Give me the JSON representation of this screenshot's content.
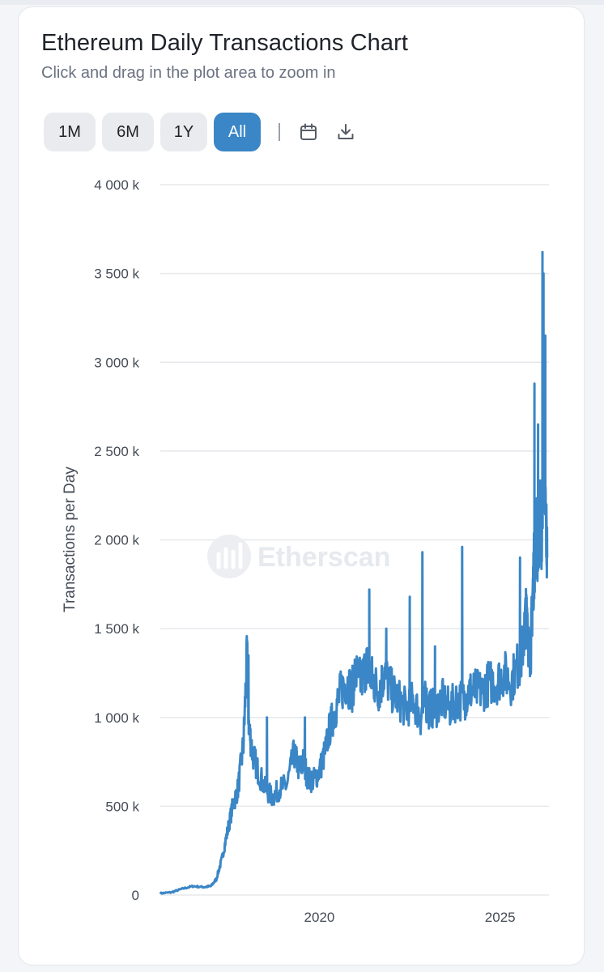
{
  "header": {
    "title": "Ethereum Daily Transactions Chart",
    "subtitle": "Click and drag in the plot area to zoom in"
  },
  "toolbar": {
    "ranges": [
      "1M",
      "6M",
      "1Y",
      "All"
    ],
    "active_range": "All",
    "separator": "|",
    "icons": [
      "calendar-icon",
      "download-icon"
    ]
  },
  "watermark": {
    "text": "Etherscan"
  },
  "colors": {
    "line": "#3a86c6",
    "active_button": "#3a86c6",
    "button": "#e9ebee",
    "grid": "#e6e8eb"
  },
  "chart_data": {
    "type": "line",
    "title": "Ethereum Daily Transactions Chart",
    "xlabel": "",
    "ylabel": "Transactions per Day",
    "x_tick_labels": [
      "2020",
      "2025"
    ],
    "x_ticks": [
      2020.0,
      2025.0
    ],
    "xlim": [
      2015.6,
      2026.35
    ],
    "y_tick_labels": [
      "0",
      "500 k",
      "1 000 k",
      "1 500 k",
      "2 000 k",
      "2 500 k",
      "3 000 k",
      "3 500 k",
      "4 000 k"
    ],
    "y_ticks": [
      0,
      500000,
      1000000,
      1500000,
      2000000,
      2500000,
      3000000,
      3500000,
      4000000
    ],
    "ylim": [
      0,
      4000000
    ],
    "grid": true,
    "series": [
      {
        "name": "",
        "x": [
          2015.6,
          2015.9,
          2016.2,
          2016.5,
          2016.8,
          2017.0,
          2017.15,
          2017.3,
          2017.45,
          2017.6,
          2017.75,
          2017.9,
          2018.0,
          2018.05,
          2018.15,
          2018.3,
          2018.5,
          2018.7,
          2018.9,
          2019.1,
          2019.3,
          2019.45,
          2019.55,
          2019.7,
          2019.85,
          2020.0,
          2020.15,
          2020.3,
          2020.45,
          2020.6,
          2020.75,
          2020.9,
          2021.0,
          2021.15,
          2021.3,
          2021.4,
          2021.5,
          2021.65,
          2021.8,
          2022.0,
          2022.2,
          2022.4,
          2022.6,
          2022.8,
          2022.95,
          2023.0,
          2023.2,
          2023.4,
          2023.6,
          2023.8,
          2024.0,
          2024.15,
          2024.3,
          2024.5,
          2024.7,
          2024.9,
          2025.1,
          2025.3,
          2025.5,
          2025.6,
          2025.7,
          2025.75,
          2025.8,
          2025.85,
          2025.9,
          2025.95,
          2026.0,
          2026.05,
          2026.1,
          2026.15,
          2026.2,
          2026.25,
          2026.3
        ],
        "values": [
          10000,
          15000,
          35000,
          50000,
          45000,
          50000,
          90000,
          200000,
          350000,
          500000,
          600000,
          850000,
          1350000,
          950000,
          800000,
          700000,
          600000,
          550000,
          600000,
          620000,
          800000,
          700000,
          750000,
          650000,
          650000,
          700000,
          800000,
          950000,
          1050000,
          1150000,
          1200000,
          1150000,
          1250000,
          1200000,
          1300000,
          1250000,
          1200000,
          1150000,
          1250000,
          1150000,
          1100000,
          1050000,
          1100000,
          1000000,
          1100000,
          1050000,
          1050000,
          1100000,
          1050000,
          1100000,
          1100000,
          1150000,
          1150000,
          1150000,
          1200000,
          1200000,
          1250000,
          1200000,
          1300000,
          1350000,
          1550000,
          1600000,
          1350000,
          1400000,
          1700000,
          1900000,
          2100000,
          1900000,
          2200000,
          2000000,
          2600000,
          2200000,
          1900000
        ],
        "spikes": [
          {
            "x": 2018.04,
            "value": 1350000
          },
          {
            "x": 2018.55,
            "value": 1000000
          },
          {
            "x": 2019.6,
            "value": 1000000
          },
          {
            "x": 2021.38,
            "value": 1720000
          },
          {
            "x": 2021.85,
            "value": 1500000
          },
          {
            "x": 2022.5,
            "value": 1680000
          },
          {
            "x": 2022.85,
            "value": 1930000
          },
          {
            "x": 2023.2,
            "value": 1400000
          },
          {
            "x": 2023.95,
            "value": 1960000
          },
          {
            "x": 2025.55,
            "value": 1900000
          },
          {
            "x": 2025.95,
            "value": 2880000
          },
          {
            "x": 2026.05,
            "value": 2650000
          },
          {
            "x": 2026.17,
            "value": 3620000
          },
          {
            "x": 2026.2,
            "value": 3500000
          },
          {
            "x": 2026.25,
            "value": 3150000
          }
        ]
      }
    ]
  }
}
